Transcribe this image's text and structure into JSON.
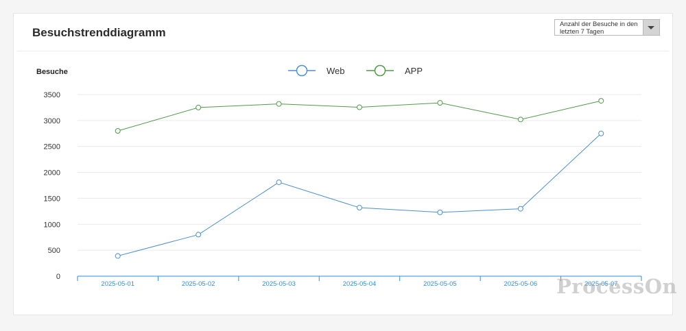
{
  "card": {
    "title": "Besuchstrenddiagramm",
    "dropdown": {
      "selected": "Anzahl der Besuche in den letzten 7 Tagen",
      "icon": "caret-down-icon"
    }
  },
  "watermark": "ProcessOn",
  "chart_data": {
    "type": "line",
    "ylabel": "Besuche",
    "xlabel": "",
    "categories": [
      "2025-05-01",
      "2025-05-02",
      "2025-05-03",
      "2025-05-04",
      "2025-05-05",
      "2025-05-06",
      "2025-05-07"
    ],
    "series": [
      {
        "name": "Web",
        "color": "#4a8fd0",
        "values": [
          390,
          800,
          1810,
          1320,
          1230,
          1300,
          2750
        ]
      },
      {
        "name": "APP",
        "color": "#4f9a48",
        "values": [
          2800,
          3250,
          3320,
          3255,
          3340,
          3020,
          3380
        ]
      }
    ],
    "yticks": [
      0,
      500,
      1000,
      1500,
      2000,
      2500,
      3000,
      3500
    ],
    "ylim": [
      0,
      3500
    ],
    "grid": true,
    "legend": "top-center",
    "axis_color": "#2f8fd8",
    "grid_color": "#e9e9e9"
  }
}
